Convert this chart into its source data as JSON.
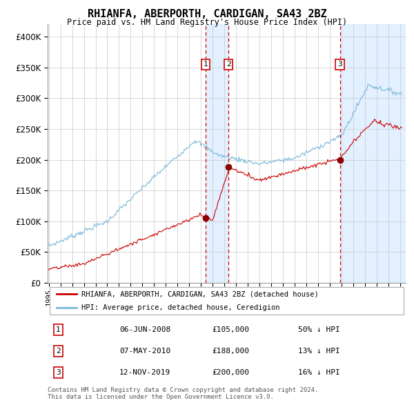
{
  "title": "RHIANFA, ABERPORTH, CARDIGAN, SA43 2BZ",
  "subtitle": "Price paid vs. HM Land Registry's House Price Index (HPI)",
  "legend_line1": "RHIANFA, ABERPORTH, CARDIGAN, SA43 2BZ (detached house)",
  "legend_line2": "HPI: Average price, detached house, Ceredigion",
  "hpi_color": "#7ab8d9",
  "price_color": "#cc0000",
  "dot_color": "#8b0000",
  "shade_color": "#ddeeff",
  "transactions": [
    {
      "label": "1",
      "date_num": 2008.42,
      "price": 105000
    },
    {
      "label": "2",
      "date_num": 2010.35,
      "price": 188000
    },
    {
      "label": "3",
      "date_num": 2019.87,
      "price": 200000
    }
  ],
  "table_rows": [
    [
      "1",
      "06-JUN-2008",
      "£105,000",
      "50% ↓ HPI"
    ],
    [
      "2",
      "07-MAY-2010",
      "£188,000",
      "13% ↓ HPI"
    ],
    [
      "3",
      "12-NOV-2019",
      "£200,000",
      "16% ↓ HPI"
    ]
  ],
  "footer": "Contains HM Land Registry data © Crown copyright and database right 2024.\nThis data is licensed under the Open Government Licence v3.0.",
  "ylim": [
    0,
    420000
  ],
  "xlim_start": 1994.9,
  "xlim_end": 2025.5,
  "yticks": [
    0,
    50000,
    100000,
    150000,
    200000,
    250000,
    300000,
    350000,
    400000
  ]
}
